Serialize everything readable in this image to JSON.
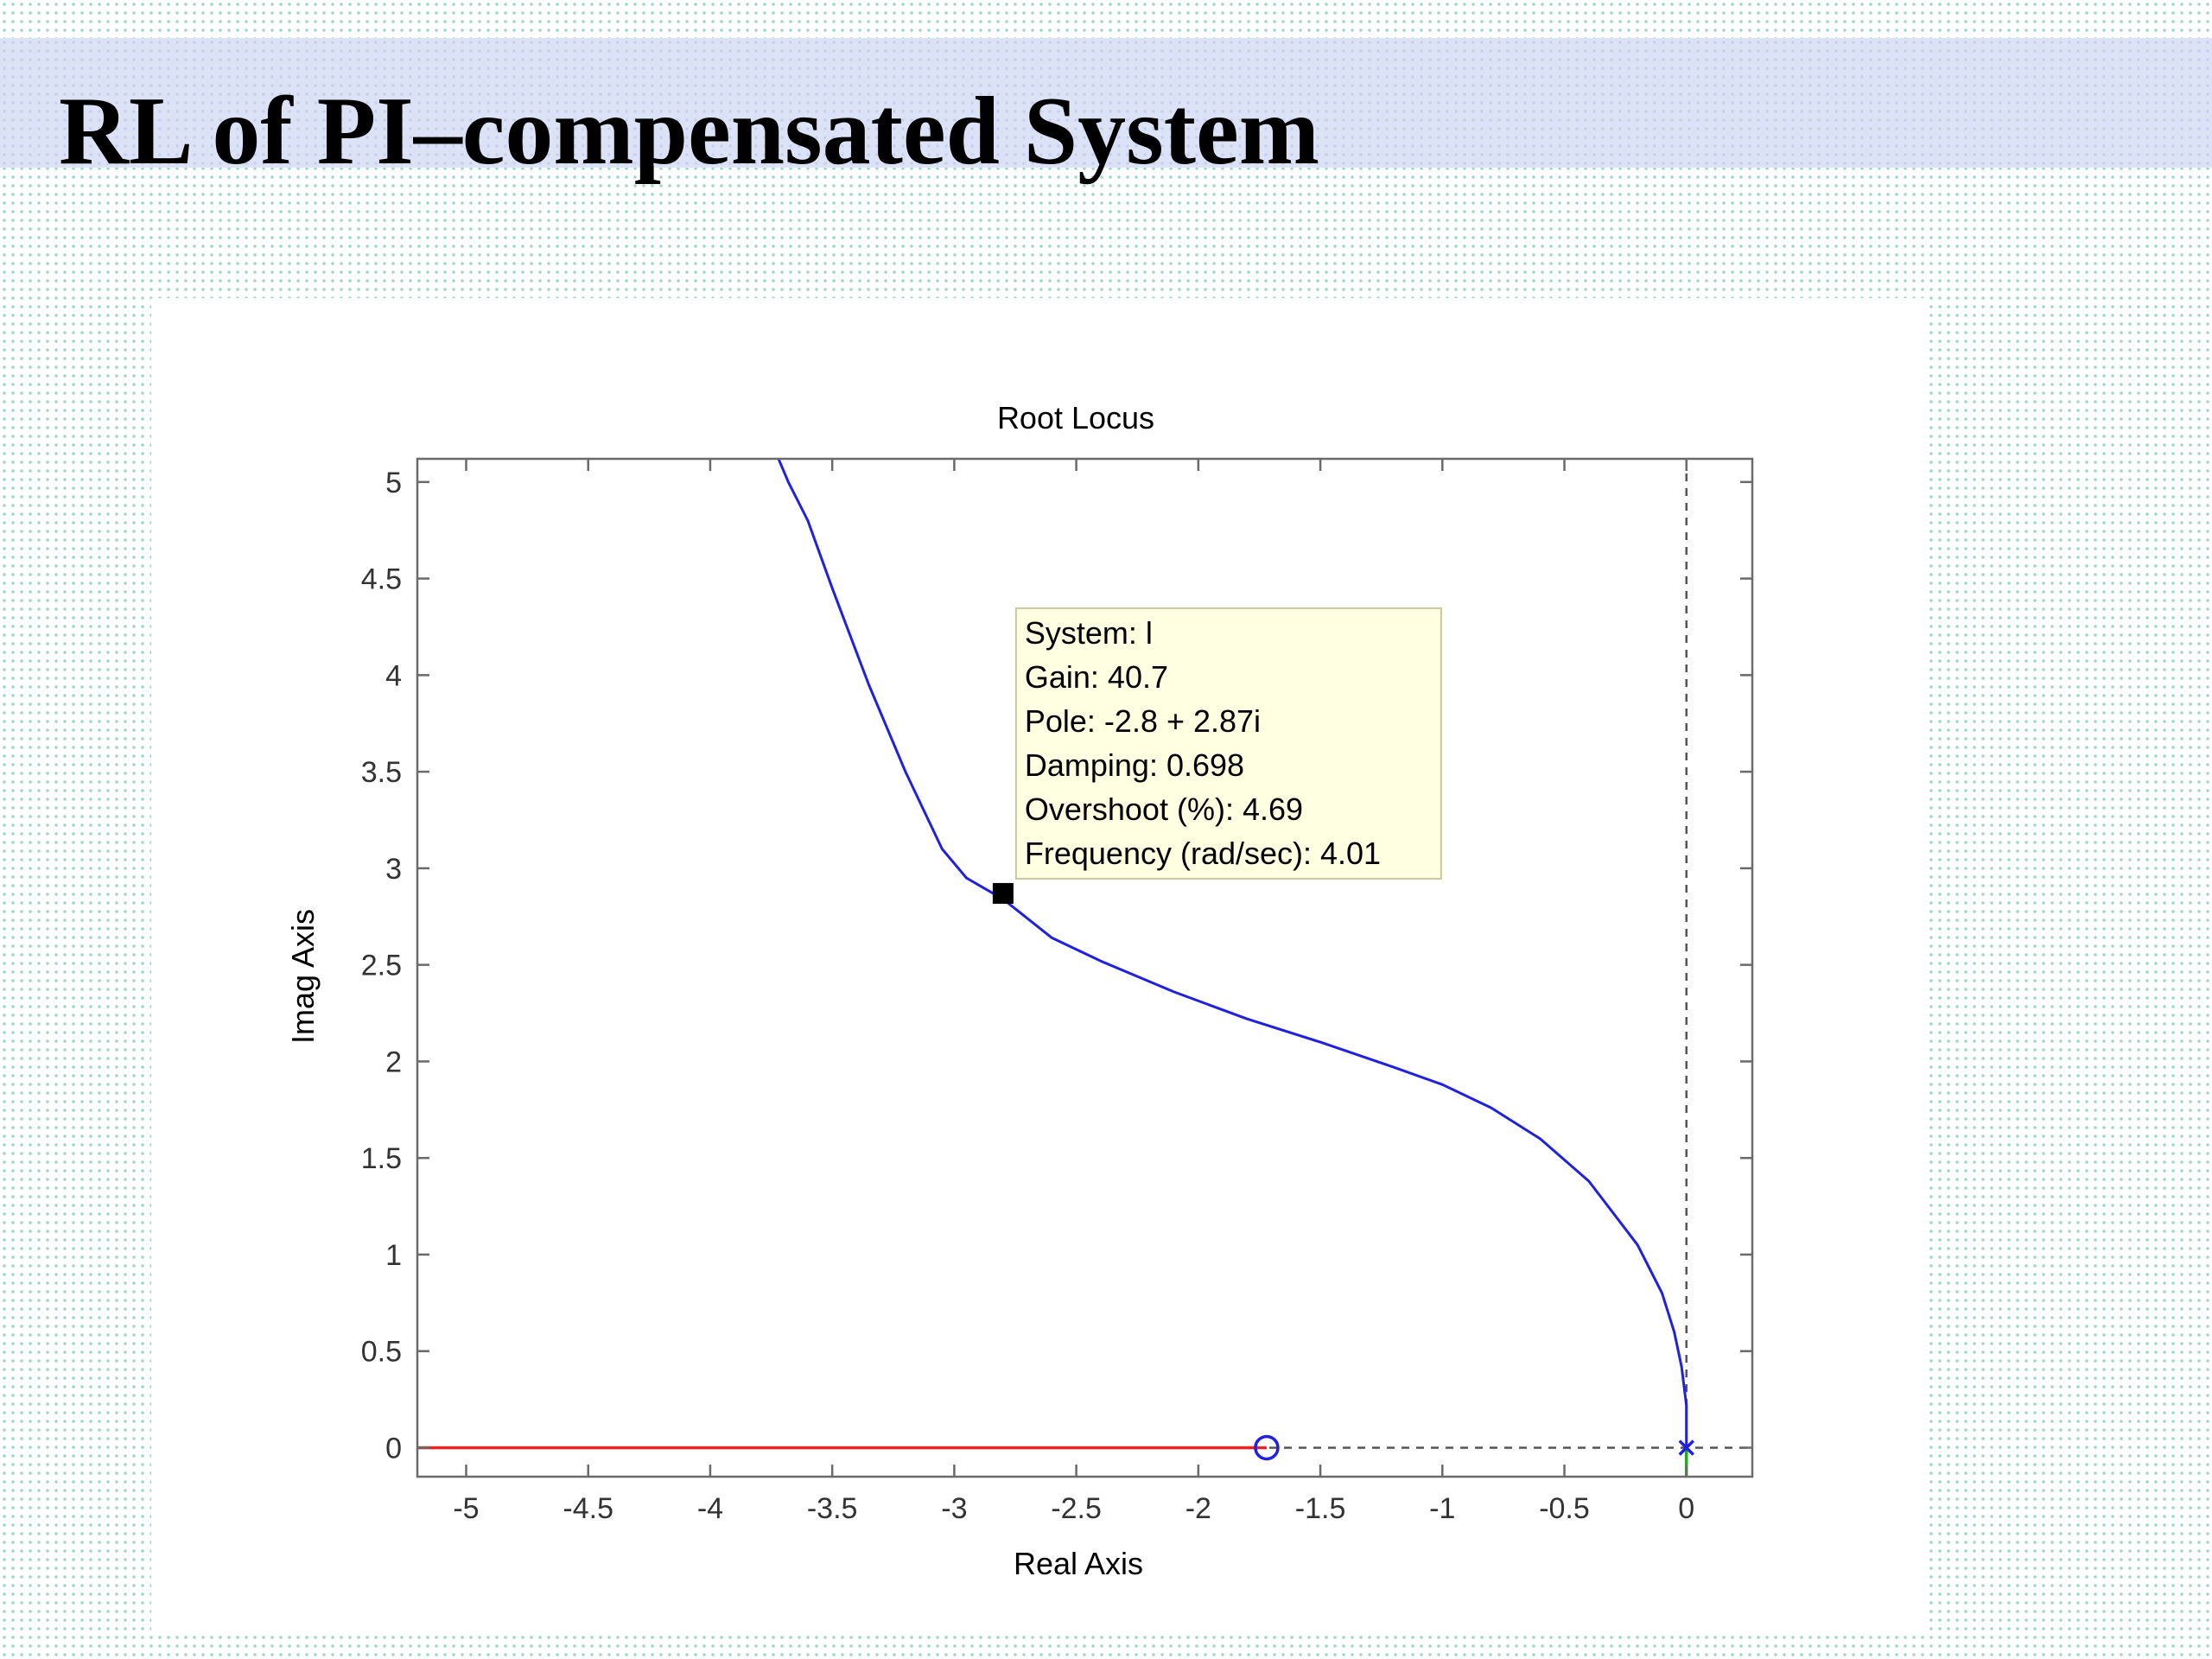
{
  "slide": {
    "title": "RL of PI–compensated System"
  },
  "chart_data": {
    "type": "line",
    "title": "Root Locus",
    "xlabel": "Real Axis",
    "ylabel": "Imag Axis",
    "xlim": [
      -5.2,
      0.27
    ],
    "ylim": [
      -0.15,
      5.12
    ],
    "xticks": [
      -5,
      -4.5,
      -4,
      -3.5,
      -3,
      -2.5,
      -2,
      -1.5,
      -1,
      -0.5,
      0
    ],
    "xtick_labels": [
      "-5",
      "-4.5",
      "-4",
      "-3.5",
      "-3",
      "-2.5",
      "-2",
      "-1.5",
      "-1",
      "-0.5",
      "0"
    ],
    "yticks": [
      0,
      0.5,
      1,
      1.5,
      2,
      2.5,
      3,
      3.5,
      4,
      4.5,
      5
    ],
    "ytick_labels": [
      "0",
      "0.5",
      "1",
      "1.5",
      "2",
      "2.5",
      "3",
      "3.5",
      "4",
      "4.5",
      "5"
    ],
    "grid": false,
    "series": [
      {
        "color": "#2020e0",
        "x": [
          0,
          0,
          -0.02,
          -0.05,
          -0.1,
          -0.2,
          -0.4,
          -0.6,
          -0.8,
          -1.0,
          -1.2,
          -1.5,
          -1.8,
          -2.1,
          -2.4,
          -2.6,
          -2.8,
          -2.95,
          -3.05,
          -3.2,
          -3.35,
          -3.5,
          -3.6,
          -3.68,
          -3.72
        ],
        "y": [
          0,
          0.22,
          0.42,
          0.6,
          0.8,
          1.05,
          1.38,
          1.6,
          1.76,
          1.88,
          1.97,
          2.1,
          2.22,
          2.36,
          2.52,
          2.64,
          2.84,
          2.95,
          3.1,
          3.5,
          3.95,
          4.45,
          4.8,
          5.0,
          5.12
        ]
      },
      {
        "color": "#ee2222",
        "x": [
          -5.2,
          -1.72
        ],
        "y": [
          0,
          0
        ]
      },
      {
        "color": "#22aa22",
        "x": [
          0,
          0
        ],
        "y": [
          0,
          -0.15
        ]
      }
    ],
    "poles": [
      {
        "x": 0,
        "y": 0
      }
    ],
    "zeros": [
      {
        "x": -1.72,
        "y": 0
      }
    ],
    "reference_lines": {
      "vertical_x": 0,
      "horizontal_y": 0,
      "style": "dashed"
    },
    "datatip": {
      "x": -2.8,
      "y": 2.87,
      "lines": [
        "System: l",
        "Gain: 40.7",
        "Pole: -2.8 + 2.87i",
        "Damping: 0.698",
        "Overshoot (%): 4.69",
        "Frequency (rad/sec): 4.01"
      ]
    }
  }
}
